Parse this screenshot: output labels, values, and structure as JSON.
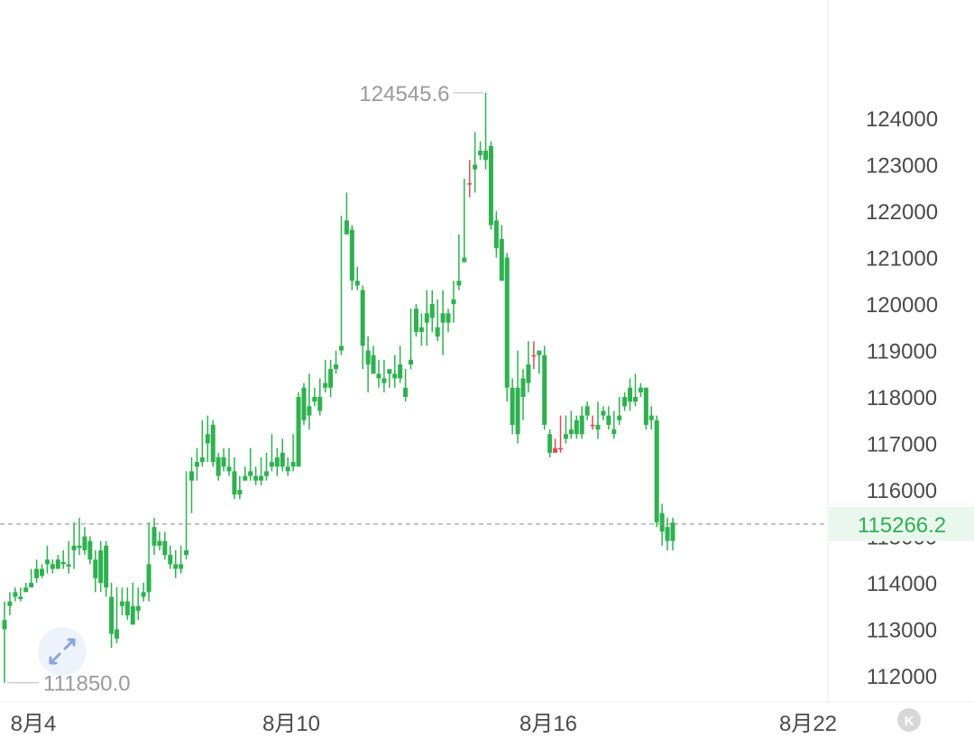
{
  "chart_data": {
    "type": "candlestick",
    "y_ticks": [
      112000,
      113000,
      114000,
      115000,
      116000,
      117000,
      118000,
      119000,
      120000,
      121000,
      122000,
      123000,
      124000
    ],
    "x_ticks": [
      "8月4",
      "8月10",
      "8月16",
      "8月22"
    ],
    "current_price": "115266.2",
    "high_marker": "124545.6",
    "low_marker": "111850.0",
    "colors": {
      "up": "#2eb14f",
      "down": "#e04a5a",
      "price_line": "#9a9a9a",
      "price_bg": "#e9f7ee",
      "price_text": "#2eb14f"
    },
    "candles": [
      [
        113200,
        113600,
        113000,
        111850
      ],
      [
        113600,
        113800,
        113500,
        113300
      ],
      [
        113800,
        113900,
        113700,
        113600
      ],
      [
        113700,
        113900,
        113650,
        113600
      ],
      [
        113900,
        114000,
        113800,
        113800
      ],
      [
        114000,
        114300,
        113900,
        113900
      ],
      [
        114300,
        114500,
        114100,
        114000
      ],
      [
        114300,
        114400,
        114150,
        114100
      ],
      [
        114500,
        114800,
        114400,
        114200
      ],
      [
        114400,
        114500,
        114300,
        114200
      ],
      [
        114500,
        114600,
        114300,
        114300
      ],
      [
        114450,
        114700,
        114400,
        114300
      ],
      [
        114400,
        114900,
        114350,
        114200
      ],
      [
        114800,
        115300,
        114700,
        114300
      ],
      [
        114800,
        115400,
        114750,
        114600
      ],
      [
        115000,
        115200,
        114700,
        114600
      ],
      [
        114900,
        115000,
        114500,
        114400
      ],
      [
        114500,
        114700,
        114100,
        113800
      ],
      [
        114700,
        114900,
        114000,
        113800
      ],
      [
        114800,
        114900,
        113900,
        113700
      ],
      [
        113700,
        114000,
        112900,
        112600
      ],
      [
        113000,
        113900,
        112800,
        112700
      ],
      [
        113600,
        113900,
        113500,
        113300
      ],
      [
        113600,
        113900,
        113300,
        113200
      ],
      [
        113500,
        114000,
        113100,
        113100
      ],
      [
        113500,
        113900,
        113400,
        113200
      ],
      [
        113800,
        114000,
        113700,
        113600
      ],
      [
        114400,
        115300,
        113800,
        113600
      ],
      [
        115200,
        115400,
        114800,
        114600
      ],
      [
        114900,
        115100,
        114800,
        114700
      ],
      [
        114900,
        115100,
        114600,
        114500
      ],
      [
        114600,
        114800,
        114400,
        114300
      ],
      [
        114400,
        114700,
        114300,
        114100
      ],
      [
        114400,
        114800,
        114300,
        114200
      ],
      [
        114700,
        116400,
        114600,
        114500
      ],
      [
        116400,
        116700,
        116200,
        115500
      ],
      [
        116600,
        116900,
        116500,
        116200
      ],
      [
        116700,
        117500,
        116600,
        116500
      ],
      [
        117200,
        117600,
        117000,
        116600
      ],
      [
        117400,
        117500,
        116600,
        116500
      ],
      [
        116700,
        116800,
        116300,
        116200
      ],
      [
        116700,
        116900,
        116500,
        116400
      ],
      [
        116500,
        116900,
        116400,
        116300
      ],
      [
        116400,
        116700,
        115900,
        115800
      ],
      [
        116000,
        116300,
        115900,
        115800
      ],
      [
        116300,
        116500,
        116200,
        116200
      ],
      [
        116400,
        116900,
        116300,
        116200
      ],
      [
        116300,
        116500,
        116200,
        116100
      ],
      [
        116300,
        116700,
        116200,
        116100
      ],
      [
        116400,
        116800,
        116300,
        116200
      ],
      [
        116600,
        117200,
        116500,
        116400
      ],
      [
        116700,
        116900,
        116500,
        116300
      ],
      [
        116800,
        117100,
        116500,
        116400
      ],
      [
        116500,
        116700,
        116400,
        116300
      ],
      [
        116600,
        117200,
        116500,
        116400
      ],
      [
        118000,
        118100,
        116500,
        116500
      ],
      [
        118200,
        118300,
        117500,
        117400
      ],
      [
        117800,
        118500,
        117600,
        117300
      ],
      [
        118000,
        118200,
        117900,
        117800
      ],
      [
        118000,
        118400,
        117700,
        117600
      ],
      [
        118300,
        118800,
        118200,
        118100
      ],
      [
        118600,
        118800,
        118200,
        118000
      ],
      [
        118700,
        119000,
        118600,
        118500
      ],
      [
        119100,
        121900,
        119000,
        118900
      ],
      [
        121800,
        122400,
        121500,
        121500
      ],
      [
        121600,
        121700,
        120500,
        120300
      ],
      [
        120500,
        120800,
        120400,
        120300
      ],
      [
        120300,
        120400,
        119100,
        118600
      ],
      [
        119000,
        119300,
        118700,
        118100
      ],
      [
        118900,
        119100,
        118500,
        118500
      ],
      [
        118500,
        118800,
        118400,
        118200
      ],
      [
        118400,
        118800,
        118300,
        118100
      ],
      [
        118600,
        118600,
        118500,
        118200
      ],
      [
        118500,
        118900,
        118400,
        118200
      ],
      [
        118700,
        119100,
        118400,
        118300
      ],
      [
        118200,
        118600,
        118000,
        117900
      ],
      [
        118800,
        119900,
        118700,
        118600
      ],
      [
        119900,
        120000,
        119400,
        119300
      ],
      [
        119500,
        119800,
        119400,
        119100
      ],
      [
        119800,
        120300,
        119600,
        119100
      ],
      [
        120000,
        120300,
        119700,
        119400
      ],
      [
        119500,
        120100,
        119300,
        119200
      ],
      [
        119800,
        120300,
        119600,
        118900
      ],
      [
        119800,
        119900,
        119600,
        119400
      ],
      [
        120100,
        120500,
        120000,
        119600
      ],
      [
        120500,
        121500,
        120400,
        120300
      ],
      [
        121000,
        122700,
        120900,
        120900
      ],
      [
        122600,
        123100,
        122600,
        122300
      ],
      [
        123000,
        123700,
        122900,
        122400
      ],
      [
        123300,
        123500,
        123200,
        123100
      ],
      [
        123300,
        124545.6,
        123100,
        122900
      ],
      [
        123400,
        123500,
        121700,
        121600
      ],
      [
        121800,
        122000,
        121200,
        121000
      ],
      [
        121400,
        121700,
        120500,
        120500
      ],
      [
        121000,
        121100,
        118200,
        117900
      ],
      [
        118200,
        118400,
        117400,
        117200
      ],
      [
        118200,
        119000,
        117200,
        117000
      ],
      [
        118400,
        118600,
        118000,
        117500
      ],
      [
        118700,
        119200,
        118300,
        118100
      ],
      [
        118900,
        119200,
        118900,
        118600
      ],
      [
        119000,
        119000,
        118900,
        118500
      ],
      [
        118900,
        119100,
        117400,
        117300
      ],
      [
        117200,
        117300,
        116800,
        116700
      ],
      [
        116800,
        117100,
        116900,
        116800
      ],
      [
        116900,
        117600,
        116900,
        116800
      ],
      [
        117200,
        117600,
        117100,
        117000
      ],
      [
        117300,
        117700,
        117200,
        117100
      ],
      [
        117500,
        117600,
        117200,
        117100
      ],
      [
        117600,
        117800,
        117200,
        117100
      ],
      [
        117800,
        117900,
        117600,
        117500
      ],
      [
        117400,
        117600,
        117400,
        117300
      ],
      [
        117400,
        117900,
        117300,
        117100
      ],
      [
        117700,
        117800,
        117600,
        117500
      ],
      [
        117600,
        117800,
        117400,
        117300
      ],
      [
        117300,
        117700,
        117200,
        117100
      ],
      [
        117600,
        118000,
        117500,
        117400
      ],
      [
        118000,
        118100,
        117800,
        117700
      ],
      [
        118200,
        118400,
        117900,
        117700
      ],
      [
        118000,
        118500,
        117900,
        117800
      ],
      [
        118200,
        118300,
        118100,
        118000
      ],
      [
        118200,
        118200,
        117400,
        117300
      ],
      [
        117600,
        117800,
        117500,
        117300
      ],
      [
        117500,
        117600,
        115300,
        115200
      ],
      [
        115500,
        115700,
        115100,
        114800
      ],
      [
        115200,
        115400,
        114900,
        114700
      ],
      [
        115300,
        115400,
        114900,
        114700
      ]
    ]
  },
  "ui": {
    "reset_icon": "k-circle-icon",
    "expand_icon": "expand-arrows-icon",
    "reset_glyph": "K"
  }
}
